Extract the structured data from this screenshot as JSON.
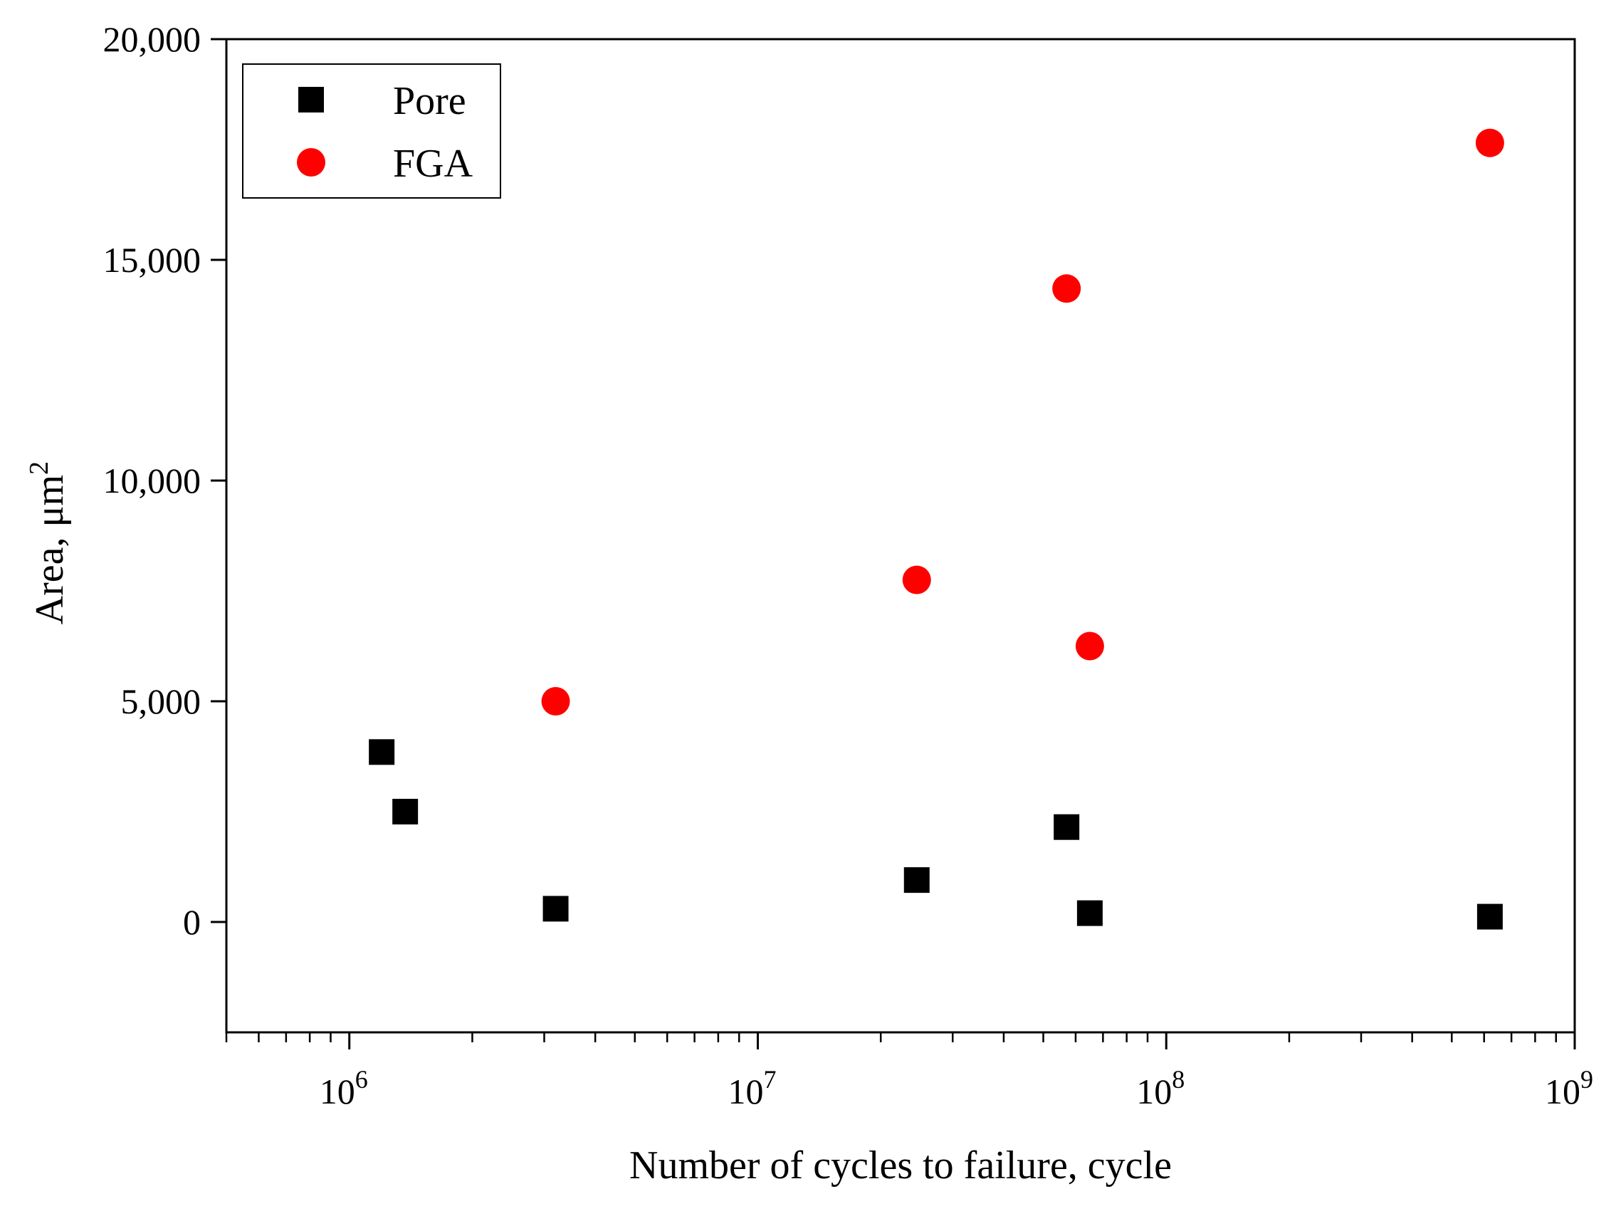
{
  "chart_data": {
    "type": "scatter",
    "title": "",
    "xlabel": "Number of cycles to failure, cycle",
    "ylabel": "Area, μm",
    "ylabel_sup": "2",
    "x_scale": "log",
    "xlim": [
      500000,
      1000000000
    ],
    "ylim": [
      -2500,
      20000
    ],
    "x_ticks": [
      {
        "value": 1000000,
        "base": "10",
        "exp": "6"
      },
      {
        "value": 10000000,
        "base": "10",
        "exp": "7"
      },
      {
        "value": 100000000,
        "base": "10",
        "exp": "8"
      },
      {
        "value": 1000000000,
        "base": "10",
        "exp": "9"
      }
    ],
    "y_ticks": [
      {
        "value": 0,
        "label": "0"
      },
      {
        "value": 5000,
        "label": "5,000"
      },
      {
        "value": 10000,
        "label": "10,000"
      },
      {
        "value": 15000,
        "label": "15,000"
      },
      {
        "value": 20000,
        "label": "20,000"
      }
    ],
    "legend_position": "top-left",
    "series": [
      {
        "name": "Pore",
        "marker": "square",
        "color": "#000000",
        "x": [
          1200000,
          1370000,
          3200000,
          24500000,
          57000000,
          65000000,
          620000000
        ],
        "y": [
          3850,
          2500,
          300,
          950,
          2150,
          200,
          120
        ]
      },
      {
        "name": "FGA",
        "marker": "circle",
        "color": "#ff0000",
        "x": [
          3200000,
          24500000,
          57000000,
          65000000,
          620000000
        ],
        "y": [
          5000,
          7750,
          14350,
          6250,
          17650
        ]
      }
    ]
  }
}
